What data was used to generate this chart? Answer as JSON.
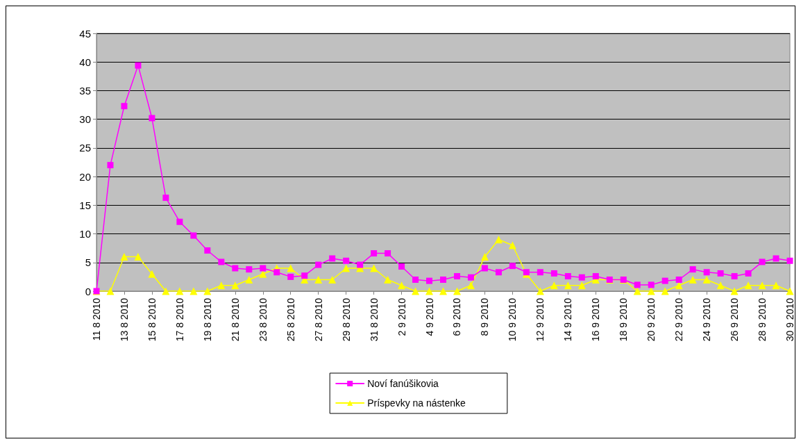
{
  "chart_data": {
    "type": "line",
    "categories": [
      "11 8 2010",
      null,
      "13 8 2010",
      null,
      "15 8 2010",
      null,
      "17 8 2010",
      null,
      "19 8 2010",
      null,
      "21 8 2010",
      null,
      "23 8 2010",
      null,
      "25 8 2010",
      null,
      "27 8 2010",
      null,
      "29 8 2010",
      null,
      "31 8 2010",
      null,
      "2 9 2010",
      null,
      "4 9 2010",
      null,
      "6 9 2010",
      null,
      "8 9 2010",
      null,
      "10 9 2010",
      null,
      "12 9 2010",
      null,
      "14 9 2010",
      null,
      "16 9 2010",
      null,
      "18 9 2010",
      null,
      "20 9 2010",
      null,
      "22 9 2010",
      null,
      "24 9 2010",
      null,
      "26 9 2010",
      null,
      "28 9 2010",
      null,
      "30 9 2010"
    ],
    "series": [
      {
        "name": "Noví fanúšikovia",
        "color": "#ff00ff",
        "marker": "square",
        "values": [
          0,
          22,
          32.3,
          39.4,
          30.2,
          16.3,
          12.1,
          9.7,
          7.1,
          5.1,
          4.0,
          3.8,
          4.0,
          3.3,
          2.5,
          2.7,
          4.6,
          5.7,
          5.3,
          4.6,
          6.6,
          6.6,
          4.3,
          2.0,
          1.8,
          2.0,
          2.6,
          2.4,
          4.0,
          3.3,
          4.4,
          3.3,
          3.3,
          3.1,
          2.6,
          2.4,
          2.6,
          2.0,
          2.0,
          1.1,
          1.1,
          1.8,
          2.0,
          3.8,
          3.3,
          3.1,
          2.6,
          3.1,
          5.1,
          5.7,
          5.3
        ]
      },
      {
        "name": "Príspevky na nástenke",
        "color": "#ffff00",
        "marker": "triangle",
        "values": [
          0,
          0,
          6,
          6,
          3,
          0,
          0,
          0,
          0,
          1,
          1,
          2,
          3,
          4,
          4,
          2,
          2,
          2,
          4,
          4,
          4,
          2,
          1,
          0,
          0,
          0,
          0,
          1,
          6,
          9,
          8,
          3,
          0,
          1,
          1,
          1,
          2,
          2,
          2,
          0,
          0,
          0,
          1,
          2,
          2,
          1,
          0,
          1,
          1,
          1,
          0
        ]
      }
    ],
    "ylim": [
      0,
      45
    ],
    "yticks": [
      0,
      5,
      10,
      15,
      20,
      25,
      30,
      35,
      40,
      45
    ],
    "grid": "y",
    "legend": "bottom"
  }
}
